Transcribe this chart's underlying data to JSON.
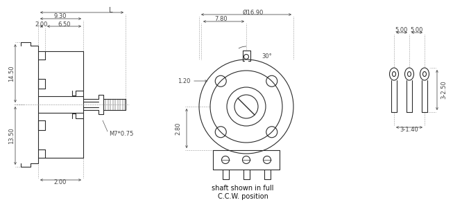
{
  "bg_color": "#ffffff",
  "line_color": "#2a2a2a",
  "dim_color": "#444444",
  "font_size_dim": 6.0,
  "font_size_note": 7.0,
  "annotations": {
    "dim_930": "9.30",
    "dim_L": "L",
    "dim_200a": "2.00",
    "dim_650": "6.50",
    "dim_1450": "14.50",
    "dim_1350": "13.50",
    "dim_M7": "M7*0.75",
    "dim_200b": "2.00",
    "dim_1690": "Ø16.90",
    "dim_780": "7.80",
    "dim_30": "30°",
    "dim_120": "1.20",
    "dim_280": "2.80",
    "dim_500a": "5.00",
    "dim_500b": "5.00",
    "dim_250": "3-2.50",
    "dim_140": "3-1.40",
    "note1": "shaft shown in full",
    "note2": "C.C.W. position"
  }
}
